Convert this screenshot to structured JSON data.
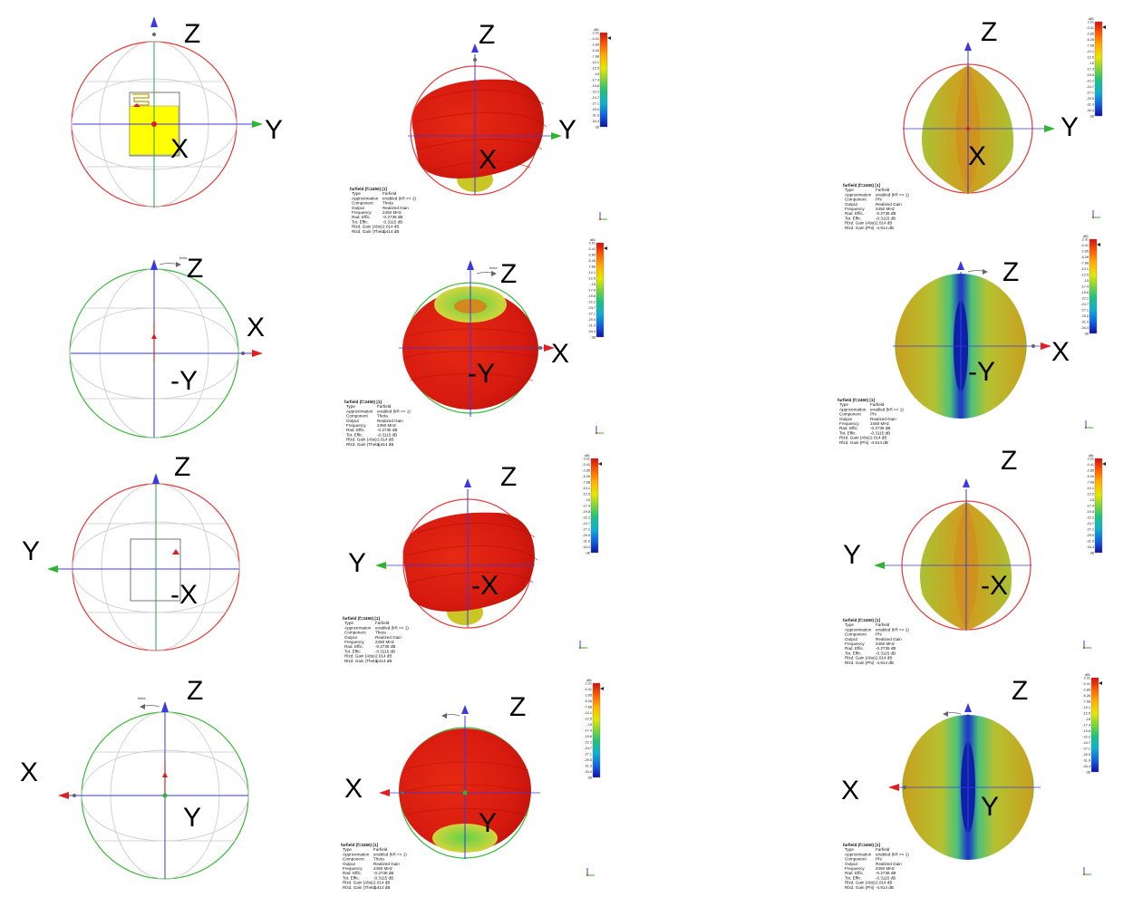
{
  "legend": {
    "unit": "dBi",
    "ticks": [
      "2.01",
      "-0.41",
      "-2.85",
      "-5.26",
      "-7.68",
      "-10.1",
      "-12.5",
      "-15",
      "-17.4",
      "-19.8",
      "-22.2",
      "-24.7",
      "-27.1",
      "-29.5",
      "-31.9",
      "-34.4",
      "-36"
    ]
  },
  "info_theta": {
    "title": "farfield (f=2450) [1]",
    "rows": [
      [
        "Type",
        "Farfield"
      ],
      [
        "Approximation",
        "enabled (kR >> 1)"
      ],
      [
        "Component",
        "Theta"
      ],
      [
        "Output",
        "Realized Gain"
      ],
      [
        "Frequency",
        "2450 MHz"
      ],
      [
        "Rad. Effic.",
        "-0.2736 dB"
      ],
      [
        "Tot. Effic.",
        "-0.3115 dB"
      ],
      [
        "Rlzd. Gain (Abs)",
        "2.014 dB"
      ],
      [
        "Rlzd. Gain (Theta)",
        "1.414 dB"
      ]
    ]
  },
  "info_phi": {
    "title": "farfield (f=2450) [1]",
    "rows": [
      [
        "Type",
        "Farfield"
      ],
      [
        "Approximation",
        "enabled (kR >> 1)"
      ],
      [
        "Component",
        "Phi"
      ],
      [
        "Output",
        "Realized Gain"
      ],
      [
        "Frequency",
        "2450 MHz"
      ],
      [
        "Rad. Effic.",
        "-0.2736 dB"
      ],
      [
        "Tot. Effic.",
        "-0.3115 dB"
      ],
      [
        "Rlzd. Gain (Abs)",
        "2.014 dB"
      ],
      [
        "Rlzd. Gain (Phi)",
        "-4.914 dB"
      ]
    ]
  },
  "axis_names": {
    "theta": "theta"
  },
  "rows": [
    {
      "labels": {
        "top": "Z",
        "side": "Y",
        "center": "X"
      }
    },
    {
      "labels": {
        "top": "Z",
        "side": "X",
        "center": "-Y"
      }
    },
    {
      "labels": {
        "top": "Z",
        "side": "Y",
        "center": "-X"
      }
    },
    {
      "labels": {
        "top": "Z",
        "side": "X",
        "center": "Y"
      }
    }
  ],
  "colors": {
    "red_circle": "#e33b3b",
    "green_circle": "#3bb83b",
    "z_axis": "#3a3ae0",
    "y_axis": "#2db52d",
    "x_axis": "#e02020",
    "patch": "#ffff00",
    "pattern_red": "#e01a10",
    "pattern_yellow": "#d6b51e",
    "pattern_green": "#a8c63a",
    "pattern_blue": "#1a4fd6"
  }
}
